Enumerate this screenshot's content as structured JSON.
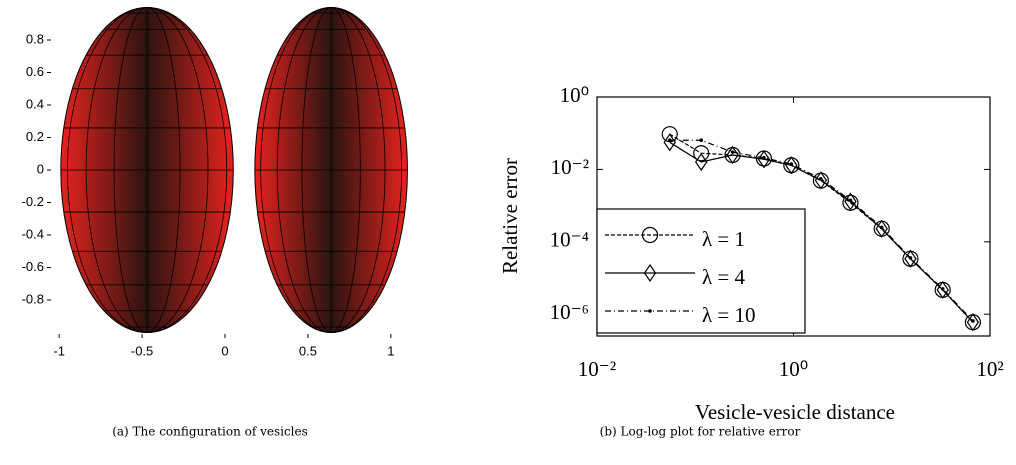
{
  "chart_data": [
    {
      "type": "surface",
      "caption": "(a) The configuration of vesicles",
      "xlim": [
        -1.2,
        1.2
      ],
      "ylim": [
        -1,
        1
      ],
      "xticks": [
        -1,
        -0.5,
        0,
        0.5,
        1
      ],
      "yticks": [
        -0.8,
        -0.6,
        -0.4,
        -0.2,
        0,
        0.2,
        0.4,
        0.6,
        0.8
      ],
      "series": [
        {
          "color": "#e8231e",
          "center_x": -0.47,
          "center_y": 0,
          "radius_x": 0.52,
          "radius_y": 1
        },
        {
          "color": "#e8231e",
          "center_x": 0.64,
          "center_y": 0,
          "radius_x": 0.46,
          "radius_y": 1
        }
      ]
    },
    {
      "type": "line",
      "caption": "(b) Log-log plot for relative error",
      "xlabel": "Vesicle-vesicle distance",
      "ylabel": "Relative error",
      "log_x": true,
      "log_y": true,
      "legend": "lower left",
      "xlim": [
        0.01,
        100
      ],
      "ylim": [
        2.5e-07,
        1
      ],
      "xticks": [
        {
          "value": 0.01,
          "label": "10⁻²"
        },
        {
          "value": 1,
          "label": "10⁰"
        },
        {
          "value": 100,
          "label": "10²"
        }
      ],
      "yticks": [
        {
          "value": 1e-06,
          "label": "10⁻⁶"
        },
        {
          "value": 0.0001,
          "label": "10⁻⁴"
        },
        {
          "value": 0.01,
          "label": "10⁻²"
        },
        {
          "value": 1,
          "label": "10⁰"
        }
      ],
      "x": [
        0.055,
        0.115,
        0.24,
        0.5,
        0.95,
        1.9,
        3.8,
        7.9,
        15.5,
        33,
        67
      ],
      "series": [
        {
          "name": "λ = 1",
          "color": "#000000",
          "linestyle": "dashed",
          "marker": "circle",
          "values": [
            0.094,
            0.028,
            0.025,
            0.02,
            0.013,
            0.0049,
            0.0012,
            0.00023,
            3.4e-05,
            4.7e-06,
            6e-07
          ]
        },
        {
          "name": "λ = 4",
          "color": "#000000",
          "linestyle": "solid",
          "marker": "diamond",
          "values": [
            0.056,
            0.016,
            0.025,
            0.019,
            0.013,
            0.005,
            0.0013,
            0.00023,
            3.4e-05,
            4.7e-06,
            6e-07
          ]
        },
        {
          "name": "λ = 10",
          "color": "#000000",
          "linestyle": "dashdot",
          "marker": "point",
          "values": [
            0.064,
            0.064,
            0.03,
            0.021,
            0.014,
            0.0055,
            0.0014,
            0.00025,
            3.6e-05,
            5e-06,
            6.5e-07
          ]
        }
      ]
    }
  ]
}
